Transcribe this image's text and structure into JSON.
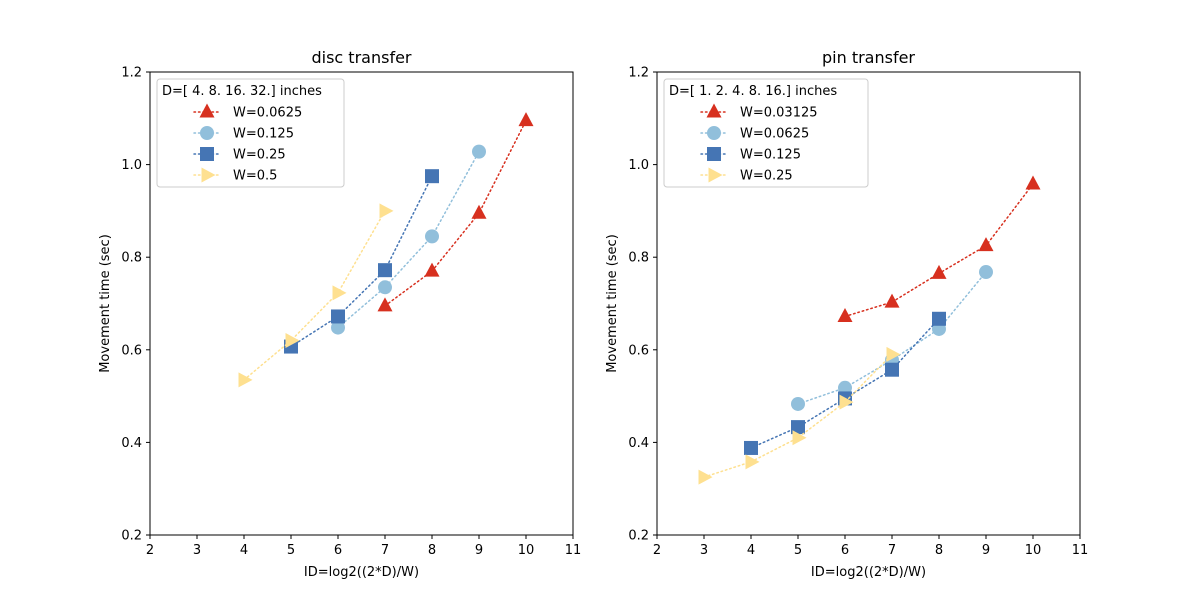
{
  "chart_data": [
    {
      "type": "line",
      "title": "disc transfer",
      "xlabel": "ID=log2((2*D)/W)",
      "ylabel": "Movement time (sec)",
      "xlim": [
        2,
        11
      ],
      "ylim": [
        0.2,
        1.2
      ],
      "xticks": [
        "2",
        "3",
        "4",
        "5",
        "6",
        "7",
        "8",
        "9",
        "10",
        "11"
      ],
      "yticks": [
        "0.2",
        "0.4",
        "0.6",
        "0.8",
        "1.0",
        "1.2"
      ],
      "grid": false,
      "legend_title": "D=[ 4.  8. 16. 32.] inches",
      "legend_position": "top-left",
      "series": [
        {
          "name": "W=0.0625",
          "color": "#d7301f",
          "marker": "triangle-up",
          "x": [
            7,
            8,
            9,
            10
          ],
          "y": [
            0.695,
            0.77,
            0.895,
            1.095
          ]
        },
        {
          "name": "W=0.125",
          "color": "#91bfdb",
          "marker": "circle",
          "x": [
            6,
            7,
            8,
            9
          ],
          "y": [
            0.648,
            0.735,
            0.845,
            1.028
          ]
        },
        {
          "name": "W=0.25",
          "color": "#4575b4",
          "marker": "square",
          "x": [
            5,
            6,
            7,
            8
          ],
          "y": [
            0.607,
            0.672,
            0.772,
            0.975
          ]
        },
        {
          "name": "W=0.5",
          "color": "#fee090",
          "marker": "triangle-right",
          "x": [
            4,
            5,
            6,
            7
          ],
          "y": [
            0.535,
            0.62,
            0.723,
            0.9
          ]
        }
      ]
    },
    {
      "type": "line",
      "title": "pin transfer",
      "xlabel": "ID=log2((2*D)/W)",
      "ylabel": "Movement time (sec)",
      "xlim": [
        2,
        11
      ],
      "ylim": [
        0.2,
        1.2
      ],
      "xticks": [
        "2",
        "3",
        "4",
        "5",
        "6",
        "7",
        "8",
        "9",
        "10",
        "11"
      ],
      "yticks": [
        "0.2",
        "0.4",
        "0.6",
        "0.8",
        "1.0",
        "1.2"
      ],
      "grid": false,
      "legend_title": "D=[ 1.  2.  4.  8. 16.] inches",
      "legend_position": "top-left",
      "series": [
        {
          "name": "W=0.03125",
          "color": "#d7301f",
          "marker": "triangle-up",
          "x": [
            6,
            7,
            8,
            9,
            10
          ],
          "y": [
            0.672,
            0.703,
            0.765,
            0.825,
            0.958
          ]
        },
        {
          "name": "W=0.0625",
          "color": "#91bfdb",
          "marker": "circle",
          "x": [
            5,
            6,
            7,
            8,
            9
          ],
          "y": [
            0.483,
            0.518,
            0.578,
            0.645,
            0.768
          ]
        },
        {
          "name": "W=0.125",
          "color": "#4575b4",
          "marker": "square",
          "x": [
            4,
            5,
            6,
            7,
            8
          ],
          "y": [
            0.388,
            0.433,
            0.495,
            0.557,
            0.667
          ]
        },
        {
          "name": "W=0.25",
          "color": "#fee090",
          "marker": "triangle-right",
          "x": [
            3,
            4,
            5,
            6,
            7
          ],
          "y": [
            0.325,
            0.358,
            0.41,
            0.487,
            0.59
          ]
        }
      ]
    }
  ]
}
